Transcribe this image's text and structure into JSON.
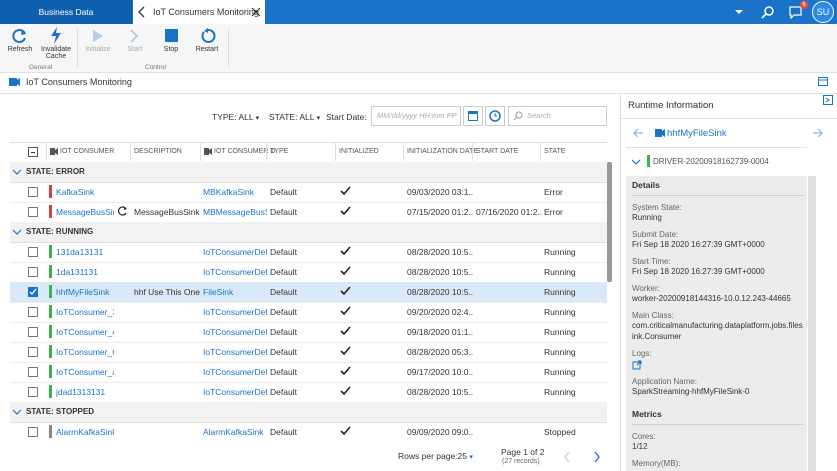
{
  "top_bar": {
    "tabs": [
      "Business Data",
      "IoT Consumers Monitoring"
    ],
    "notification_count": 6,
    "user_initials": "SU"
  },
  "toolbar": {
    "groups": [
      {
        "name": "General",
        "buttons": [
          "Refresh",
          "Invalidate Cache"
        ]
      },
      {
        "name": "Control",
        "buttons": [
          "Initialize",
          "Start",
          "Stop",
          "Restart"
        ]
      }
    ]
  },
  "page_title": "IoT Consumers Monitoring",
  "filters": {
    "type": "TYPE: ALL",
    "state": "STATE: ALL",
    "start_date_label": "Start Date:",
    "date_placeholder": "MM/dd/yyyy HH:mm PP",
    "search_placeholder": "Search"
  },
  "table": {
    "columns": [
      "IOT CONSUMER",
      "DESCRIPTION",
      "IOT CONSUMER D",
      "TYPE",
      "INITIALIZED",
      "INITIALIZATION DATE",
      "START DATE",
      "STATE"
    ],
    "groups": [
      {
        "label": "STATE: ERROR",
        "rows": [
          {
            "name": "KafkaSink",
            "definition": "MBKafkaSink",
            "type": "Default",
            "init_date": "09/03/2020 03:1...",
            "state": "Error"
          },
          {
            "name": "MessageBusSink",
            "description": "MessageBusSink...",
            "definition": "MBMessageBusSinke",
            "type": "Default",
            "init_date": "07/15/2020 01:2...",
            "start_date": "07/16/2020 01:2...",
            "state": "Error"
          }
        ]
      },
      {
        "label": "STATE: RUNNING",
        "rows": [
          {
            "name": "131da13131",
            "definition": "IoTConsumerDefir",
            "type": "Default",
            "init_date": "08/28/2020 10:5...",
            "state": "Running"
          },
          {
            "name": "1da131131",
            "definition": "IoTConsumerDefir",
            "type": "Default",
            "init_date": "08/28/2020 10:5...",
            "state": "Running"
          },
          {
            "name": "hhfMyFileSink",
            "description": "hhf Use This One",
            "definition": "FileSink",
            "type": "Default",
            "init_date": "08/28/2020 10:5...",
            "state": "Running"
          },
          {
            "name": "IoTConsumer_31",
            "definition": "IoTConsumerDefir",
            "type": "Default",
            "init_date": "09/20/2020 02:4...",
            "state": "Running"
          },
          {
            "name": "IoTConsumer_4C",
            "definition": "IoTConsumerDefir",
            "type": "Default",
            "init_date": "09/18/2020 01:1...",
            "state": "Running"
          },
          {
            "name": "IoTConsumer_6t",
            "definition": "IoTConsumerDefir",
            "type": "Default",
            "init_date": "08/28/2020 05:3...",
            "state": "Running"
          },
          {
            "name": "IoTConsumer_at",
            "definition": "IoTConsumerDefir",
            "type": "Default",
            "init_date": "09/17/2020 10:0...",
            "state": "Running"
          },
          {
            "name": "jdad1313131",
            "definition": "IoTConsumerDefir",
            "type": "Default",
            "init_date": "08/28/2020 10:5...",
            "state": "Running"
          }
        ]
      },
      {
        "label": "STATE: STOPPED",
        "rows": [
          {
            "name": "AlarmKafkaSink",
            "definition": "AlarmKafkaSink",
            "type": "Default",
            "init_date": "09/09/2020 09:0...",
            "state": "Stopped"
          }
        ]
      }
    ]
  },
  "pagination": {
    "rows_per_page": "Rows per page:25",
    "page": "Page 1 of 2",
    "records": "(27 records)"
  },
  "side_panel": {
    "title": "Runtime Information",
    "consumer": "hhfMyFileSink",
    "driver": "DRIVER-20200918162739-0004",
    "details_title": "Details",
    "details": [
      {
        "label": "System State:",
        "value": "Running"
      },
      {
        "label": "Submit Date:",
        "value": "Fri Sep 18 2020 16:27:39 GMT+0000"
      },
      {
        "label": "Start Time:",
        "value": "Fri Sep 18 2020 16:27:39 GMT+0000"
      },
      {
        "label": "Worker:",
        "value": "worker-20200918144316-10.0.12.243-44665"
      },
      {
        "label": "Main Class:",
        "value": "com.criticalmanufacturing.dataplatform.jobs.filesink.Consumer"
      },
      {
        "label": "Logs:"
      },
      {
        "label": "Application Name:",
        "value": "SparkStreaming-hhfMyFileSink-0"
      }
    ],
    "metrics_title": "Metrics",
    "metrics": [
      {
        "label": "Cores:",
        "value": "1/12"
      },
      {
        "label": "Memory(MB):"
      }
    ]
  }
}
